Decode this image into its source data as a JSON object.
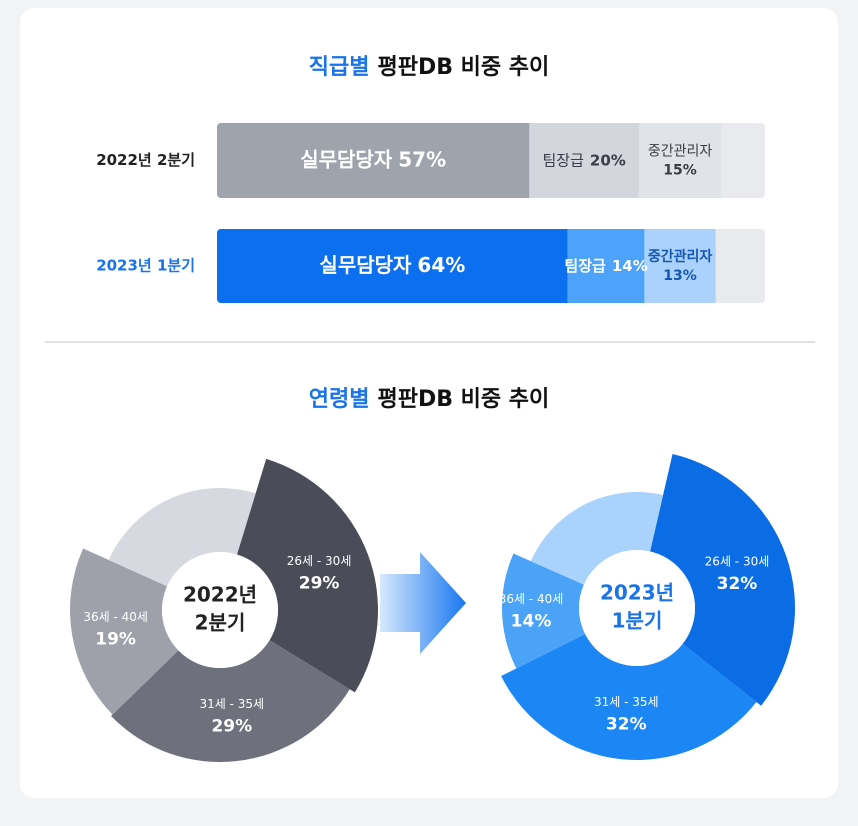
{
  "chart_data": [
    {
      "type": "bar",
      "orientation": "horizontal",
      "stacked": true,
      "title_highlight": "직급별",
      "title": "평판DB 비중 추이",
      "categories": [
        "2022년 2분기",
        "2023년 1분기"
      ],
      "xlim": [
        0,
        100
      ],
      "series": [
        {
          "name": "실무담당자",
          "values": [
            57,
            64
          ],
          "value_labels": [
            "57%",
            "64%"
          ],
          "colors": [
            "#9fa3ab",
            "#0b6ff0"
          ]
        },
        {
          "name": "팀장급",
          "values": [
            20,
            14
          ],
          "value_labels": [
            "20%",
            "14%"
          ],
          "colors": [
            "#d3d6dc",
            "#4da3fa"
          ]
        },
        {
          "name": "중간관리자",
          "values": [
            15,
            13
          ],
          "value_labels": [
            "15%",
            "13%"
          ],
          "colors": [
            "#e0e3e8",
            "#aad2fd"
          ]
        }
      ]
    },
    {
      "type": "pie",
      "title_highlight": "연령별",
      "title": "평판DB 비중 추이",
      "center_label": [
        "2022년",
        "2분기"
      ],
      "categories": [
        "26세 - 30세",
        "31세 - 35세",
        "36세 - 40세",
        null
      ],
      "values": [
        29,
        29,
        19,
        23
      ],
      "value_labels": [
        "29%",
        "29%",
        "19%",
        null
      ],
      "colors": [
        "#4a4c57",
        "#6e717c",
        "#9ea1aa",
        "#d6d9df"
      ]
    },
    {
      "type": "pie",
      "center_label": [
        "2023년",
        "1분기"
      ],
      "categories": [
        "26세 - 30세",
        "31세 - 35세",
        "36세 - 40세",
        null
      ],
      "values": [
        32,
        32,
        14,
        22
      ],
      "value_labels": [
        "32%",
        "32%",
        "14%",
        null
      ],
      "colors": [
        "#0a6de6",
        "#1c86f5",
        "#4ba3f8",
        "#a9d2fc"
      ]
    }
  ]
}
